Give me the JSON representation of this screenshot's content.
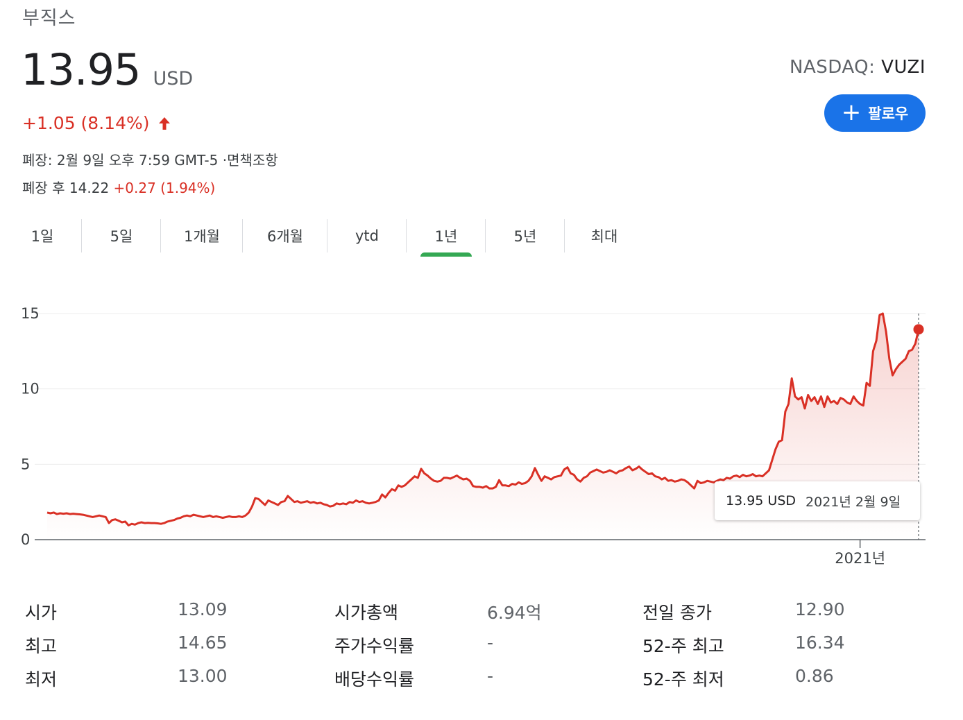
{
  "header": {
    "company": "부직스",
    "price": "13.95",
    "currency": "USD",
    "change": "+1.05 (8.14%)",
    "closed_info": "폐장: 2월 9일 오후 7:59 GMT-5 ·면책조항",
    "after_label": "폐장 후 14.22",
    "after_change": "+0.27 (1.94%)",
    "exchange_prefix": "NASDAQ:",
    "exchange_symbol": "VUZI",
    "follow_label": "팔로우"
  },
  "tabs": [
    {
      "label": "1일",
      "active": false
    },
    {
      "label": "5일",
      "active": false
    },
    {
      "label": "1개월",
      "active": false
    },
    {
      "label": "6개월",
      "active": false
    },
    {
      "label": "ytd",
      "active": false
    },
    {
      "label": "1년",
      "active": true
    },
    {
      "label": "5년",
      "active": false
    },
    {
      "label": "최대",
      "active": false
    }
  ],
  "chart_data": {
    "type": "area",
    "yticks": [
      "15",
      "10",
      "5",
      "0"
    ],
    "ylim": [
      0,
      15
    ],
    "xtick_label": "2021년",
    "line_color": "#d93025",
    "grid": true,
    "tooltip": {
      "value": "13.95 USD",
      "date": "2021년 2월 9일"
    },
    "values": [
      1.8,
      1.75,
      1.8,
      1.7,
      1.75,
      1.72,
      1.75,
      1.7,
      1.72,
      1.7,
      1.68,
      1.65,
      1.6,
      1.55,
      1.5,
      1.55,
      1.6,
      1.55,
      1.5,
      1.1,
      1.3,
      1.35,
      1.25,
      1.15,
      1.2,
      0.95,
      1.05,
      1.0,
      1.1,
      1.15,
      1.1,
      1.12,
      1.1,
      1.1,
      1.08,
      1.05,
      1.1,
      1.2,
      1.25,
      1.3,
      1.4,
      1.45,
      1.55,
      1.6,
      1.55,
      1.65,
      1.6,
      1.55,
      1.5,
      1.55,
      1.6,
      1.5,
      1.55,
      1.5,
      1.45,
      1.5,
      1.55,
      1.5,
      1.5,
      1.55,
      1.5,
      1.6,
      1.8,
      2.2,
      2.75,
      2.7,
      2.5,
      2.3,
      2.6,
      2.5,
      2.4,
      2.3,
      2.5,
      2.55,
      2.9,
      2.7,
      2.5,
      2.55,
      2.45,
      2.5,
      2.55,
      2.45,
      2.5,
      2.4,
      2.45,
      2.35,
      2.3,
      2.2,
      2.25,
      2.4,
      2.35,
      2.4,
      2.35,
      2.5,
      2.45,
      2.6,
      2.5,
      2.55,
      2.45,
      2.4,
      2.45,
      2.5,
      2.6,
      3.0,
      2.8,
      3.1,
      3.35,
      3.25,
      3.6,
      3.5,
      3.6,
      3.8,
      4.0,
      4.2,
      4.1,
      4.7,
      4.4,
      4.25,
      4.05,
      3.9,
      3.85,
      3.9,
      4.1,
      4.1,
      4.05,
      4.15,
      4.25,
      4.1,
      4.0,
      4.05,
      3.9,
      3.55,
      3.5,
      3.5,
      3.45,
      3.55,
      3.4,
      3.4,
      3.5,
      3.95,
      3.6,
      3.6,
      3.55,
      3.7,
      3.65,
      3.8,
      3.7,
      3.75,
      3.9,
      4.2,
      4.75,
      4.3,
      3.9,
      4.2,
      4.1,
      4.0,
      4.15,
      4.2,
      4.25,
      4.65,
      4.8,
      4.4,
      4.3,
      4.0,
      3.85,
      4.1,
      4.2,
      4.45,
      4.55,
      4.65,
      4.55,
      4.45,
      4.5,
      4.6,
      4.5,
      4.4,
      4.55,
      4.6,
      4.75,
      4.85,
      4.6,
      4.7,
      4.85,
      4.65,
      4.5,
      4.35,
      4.4,
      4.2,
      4.15,
      4.0,
      4.1,
      3.9,
      3.95,
      3.85,
      3.9,
      4.0,
      3.95,
      3.8,
      3.6,
      3.4,
      3.9,
      3.75,
      3.8,
      3.9,
      3.85,
      3.8,
      3.9,
      4.0,
      3.95,
      4.1,
      4.05,
      4.2,
      4.25,
      4.15,
      4.3,
      4.2,
      4.25,
      4.35,
      4.2,
      4.25,
      4.2,
      4.4,
      4.6,
      5.3,
      6.0,
      6.5,
      6.6,
      8.5,
      9.0,
      10.7,
      9.5,
      9.3,
      9.45,
      8.7,
      9.6,
      9.2,
      9.45,
      9.0,
      9.5,
      8.8,
      9.5,
      9.1,
      9.2,
      9.0,
      9.4,
      9.3,
      9.1,
      9.0,
      9.5,
      9.2,
      9.0,
      8.9,
      10.4,
      10.2,
      12.5,
      13.2,
      14.9,
      15.0,
      13.8,
      12.0,
      10.9,
      11.3,
      11.6,
      11.8,
      12.0,
      12.5,
      12.6,
      13.0,
      13.95
    ],
    "xtick_index": 250,
    "end_marker": true
  },
  "stats": [
    {
      "label": "시가",
      "value": "13.09"
    },
    {
      "label": "최고",
      "value": "14.65"
    },
    {
      "label": "최저",
      "value": "13.00"
    },
    {
      "label": "시가총액",
      "value": "6.94억"
    },
    {
      "label": "주가수익률",
      "value": "-"
    },
    {
      "label": "배당수익률",
      "value": "-"
    },
    {
      "label": "전일 종가",
      "value": "12.90"
    },
    {
      "label": "52-주 최고",
      "value": "16.34"
    },
    {
      "label": "52-주 최저",
      "value": "0.86"
    }
  ]
}
